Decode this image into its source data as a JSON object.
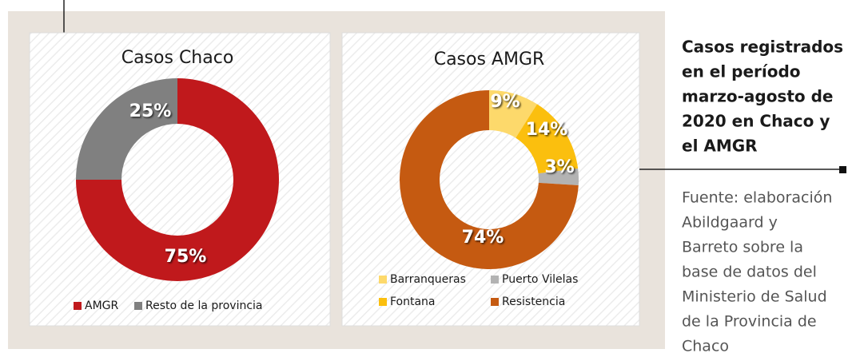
{
  "chart_data": [
    {
      "type": "pie",
      "title": "Casos Chaco",
      "categories": [
        "AMGR",
        "Resto de la provincia"
      ],
      "values": [
        75,
        25
      ],
      "value_labels": [
        "75%",
        "25%"
      ],
      "colors": [
        "#c0191c",
        "#808080"
      ]
    },
    {
      "type": "pie",
      "title": "Casos AMGR",
      "categories": [
        "Barranqueras",
        "Fontana",
        "Puerto Vilelas",
        "Resistencia"
      ],
      "values": [
        9,
        14,
        3,
        74
      ],
      "value_labels": [
        "9%",
        "14%",
        "3%",
        "74%"
      ],
      "colors": [
        "#fdd96b",
        "#fbbf0e",
        "#b3b3b3",
        "#c55a11"
      ]
    }
  ],
  "caption": {
    "title": [
      "Casos registrados",
      "en el período",
      "marzo-agosto de",
      "2020 en Chaco y",
      "el AMGR"
    ],
    "source": [
      "Fuente: elaboración",
      "Abildgaard y",
      "Barreto sobre la",
      "base de datos del",
      "Ministerio de Salud",
      "de la Provincia de",
      "Chaco"
    ]
  }
}
